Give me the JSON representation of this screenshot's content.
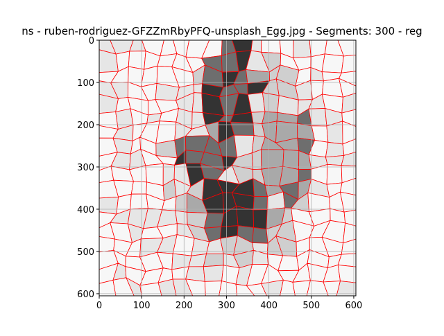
{
  "chart_data": {
    "type": "image",
    "title": "ns - ruben-rodriguez-GFZZmRbyPFQ-unsplash_Egg.jpg - Segments: 300 - reg",
    "xlabel": "",
    "ylabel": "",
    "xlim": [
      0,
      605
    ],
    "ylim": [
      605,
      0
    ],
    "x_ticks": [
      0,
      100,
      200,
      300,
      400,
      500,
      600
    ],
    "y_ticks": [
      0,
      100,
      200,
      300,
      400,
      500,
      600
    ],
    "grid": true,
    "segments": 300,
    "boundary_color": "#ff0000",
    "colors": {
      "background": "#f7f7f7",
      "light": "#e6e6e6",
      "mid_light": "#cfcfcf",
      "mid": "#a9a9a9",
      "mid_dark": "#6e6e6e",
      "dark": "#333333",
      "darkest": "#262626"
    }
  }
}
